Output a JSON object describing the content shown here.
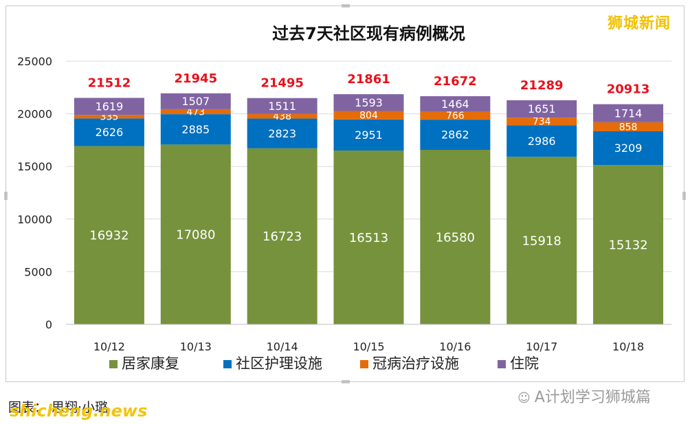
{
  "brand": "狮城新闻",
  "caption": "图表： 思翔·小璐",
  "watermark": "shicheng.news",
  "wechat_account": "A计划学习狮城篇",
  "chart_data": {
    "type": "bar",
    "stacked": true,
    "title": "过去7天社区现有病例概况",
    "xlabel": "",
    "ylabel": "",
    "ylim": [
      0,
      25000
    ],
    "yticks": [
      0,
      5000,
      10000,
      15000,
      20000,
      25000
    ],
    "grid": true,
    "legend_position": "bottom",
    "categories": [
      "10/12",
      "10/13",
      "10/14",
      "10/15",
      "10/16",
      "10/17",
      "10/18"
    ],
    "series": [
      {
        "name": "居家康复",
        "color": "#76923c",
        "values": [
          16932,
          17080,
          16723,
          16513,
          16580,
          15918,
          15132
        ]
      },
      {
        "name": "社区护理设施",
        "color": "#0070c0",
        "values": [
          2626,
          2885,
          2823,
          2951,
          2862,
          2986,
          3209
        ]
      },
      {
        "name": "冠病治疗设施",
        "color": "#e46c0a",
        "values": [
          335,
          473,
          438,
          804,
          766,
          734,
          858
        ]
      },
      {
        "name": "住院",
        "color": "#8064a2",
        "values": [
          1619,
          1507,
          1511,
          1593,
          1464,
          1651,
          1714
        ]
      }
    ],
    "totals": [
      21512,
      21945,
      21495,
      21861,
      21672,
      21289,
      20913
    ],
    "total_label_color": "#e8101a"
  }
}
